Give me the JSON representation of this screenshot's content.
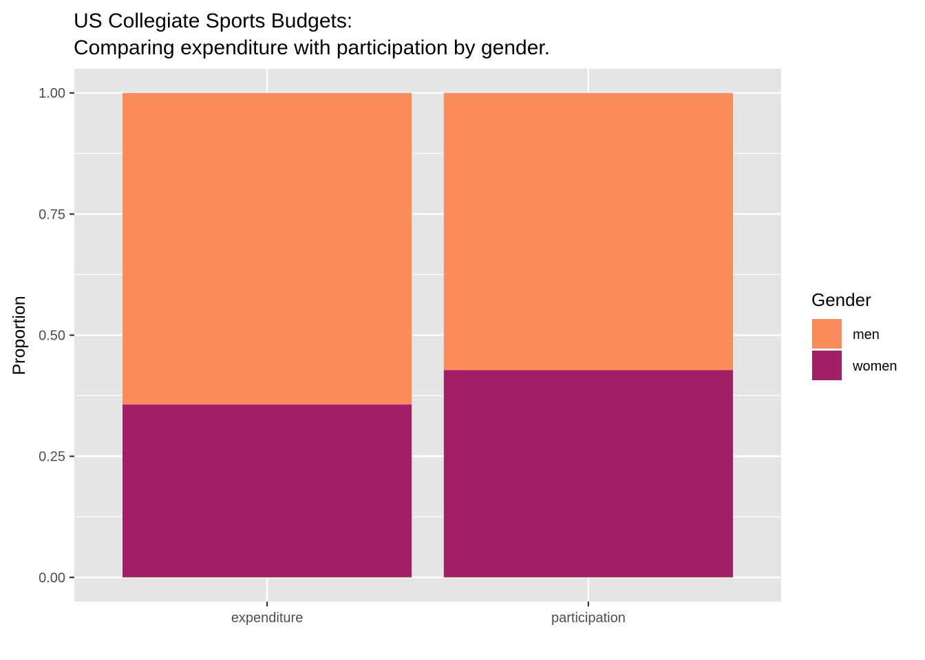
{
  "chart_data": {
    "type": "bar",
    "stacked": true,
    "title": "US Collegiate Sports Budgets:",
    "subtitle": "Comparing expenditure with participation by gender.",
    "xlabel": "",
    "ylabel": "Proportion",
    "categories": [
      "expenditure",
      "participation"
    ],
    "series": [
      {
        "name": "women",
        "values": [
          0.357,
          0.428
        ],
        "color": "#A31F65"
      },
      {
        "name": "men",
        "values": [
          0.643,
          0.572
        ],
        "color": "#FA8C5B"
      }
    ],
    "ylim": [
      -0.05,
      1.05
    ],
    "yticks": [
      0,
      0.25,
      0.5,
      0.75,
      1.0
    ],
    "ytick_labels": [
      "0.00",
      "0.25",
      "0.50",
      "0.75",
      "1.00"
    ],
    "grid": true,
    "panel_background": "#E5E5E5",
    "legend": {
      "title": "Gender",
      "position": "right",
      "entries": [
        {
          "label": "men",
          "color": "#FA8C5B"
        },
        {
          "label": "women",
          "color": "#A31F65"
        }
      ]
    }
  }
}
